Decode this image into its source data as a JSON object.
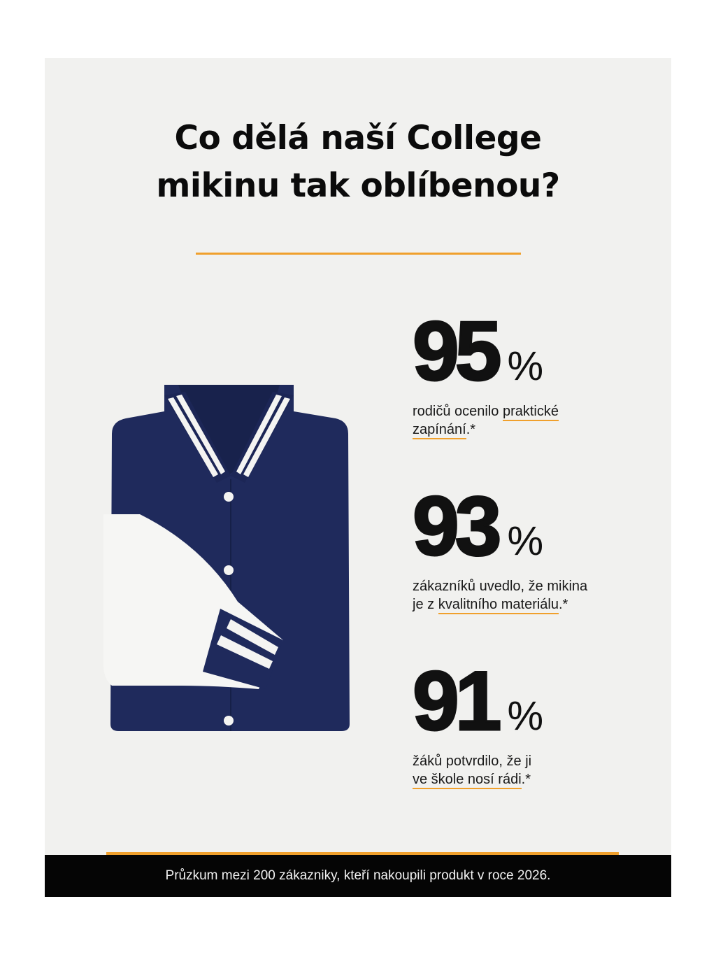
{
  "title": {
    "line1": "Co dělá naší College",
    "line2": "mikinu tak oblíbenou?"
  },
  "colors": {
    "accent": "#f0a02c",
    "jacket": "#1f2a5c",
    "background": "#f1f1ef",
    "footer": "#050505"
  },
  "image": {
    "label": "folded-navy-college-jacket"
  },
  "stats": [
    {
      "value": "95",
      "unit": "%",
      "line1_plain": "rodičů ocenilo ",
      "line1_ul": "praktické",
      "line2_plain": "",
      "line2_ul": "zapínání",
      "line2_end": ".*"
    },
    {
      "value": "93",
      "unit": "%",
      "line1_plain": "zákazníků uvedlo, že mikina",
      "line1_ul": "",
      "line2_plain": "je z ",
      "line2_ul": "kvalitního materiálu",
      "line2_end": ".*"
    },
    {
      "value": "91",
      "unit": "%",
      "line1_plain": "žáků potvrdilo, že ji",
      "line1_ul": "",
      "line2_plain": "",
      "line2_ul": "ve škole nosí rádi",
      "line2_end": ".*"
    }
  ],
  "footer": {
    "text": "Průzkum mezi 200 zákazniky, kteří nakoupili produkt v roce 2026."
  }
}
